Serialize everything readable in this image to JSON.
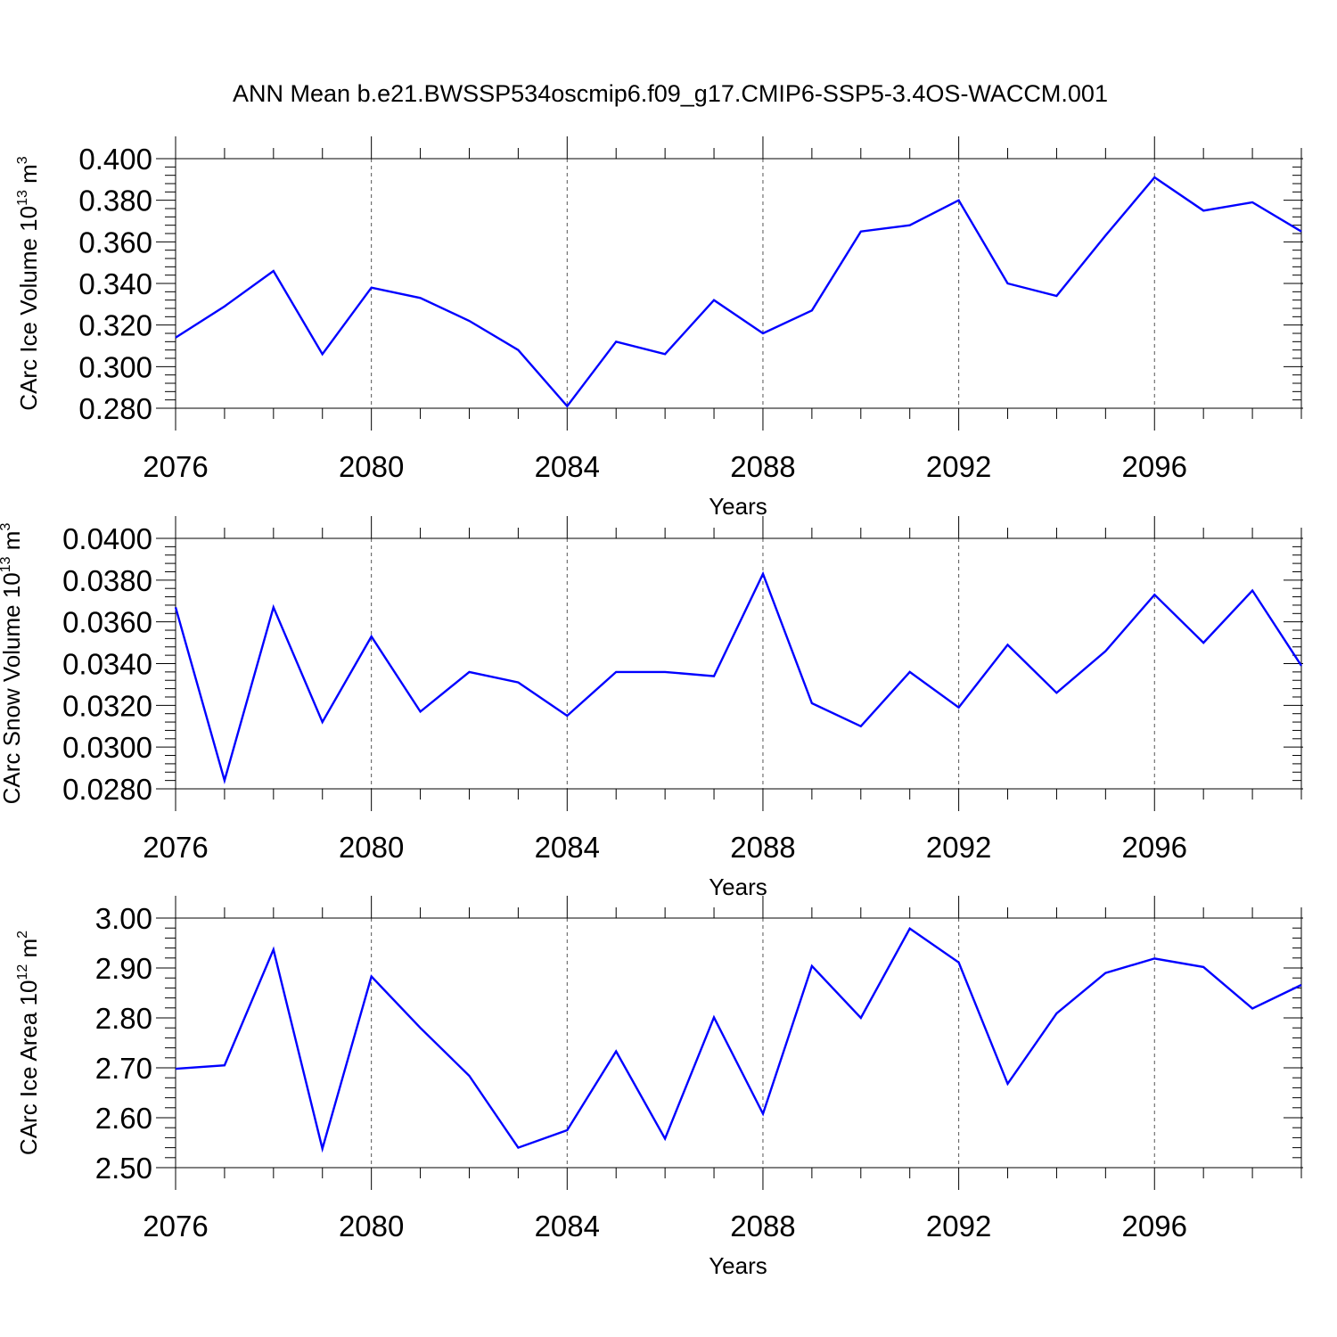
{
  "title": "ANN Mean b.e21.BWSSP534oscmip6.f09_g17.CMIP6-SSP5-3.4OS-WACCM.001",
  "colors": {
    "line": "#0000ff",
    "axis": "#000000",
    "grid": "#555555",
    "background": "#ffffff"
  },
  "chart_data": [
    {
      "type": "line",
      "title": "ANN Mean b.e21.BWSSP534oscmip6.f09_g17.CMIP6-SSP5-3.4OS-WACCM.001",
      "xlabel": "Years",
      "ylabel": {
        "prefix": "CArc Ice Volume 10",
        "exponent": "13",
        "middle": " m",
        "unit_exponent": "3"
      },
      "xlim": [
        2076,
        2099
      ],
      "ylim": [
        0.28,
        0.4
      ],
      "xticks": [
        "2076",
        "2080",
        "2084",
        "2088",
        "2092",
        "2096"
      ],
      "yticks": [
        "0.280",
        "0.300",
        "0.320",
        "0.340",
        "0.360",
        "0.380",
        "0.400"
      ],
      "grid": "vertical-dashed",
      "x": [
        2076,
        2077,
        2078,
        2079,
        2080,
        2081,
        2082,
        2083,
        2084,
        2085,
        2086,
        2087,
        2088,
        2089,
        2090,
        2091,
        2092,
        2093,
        2094,
        2095,
        2096,
        2097,
        2098,
        2099
      ],
      "values": [
        0.314,
        0.329,
        0.346,
        0.306,
        0.338,
        0.333,
        0.322,
        0.308,
        0.281,
        0.312,
        0.306,
        0.332,
        0.316,
        0.327,
        0.365,
        0.368,
        0.38,
        0.34,
        0.334,
        0.363,
        0.391,
        0.375,
        0.379,
        0.365
      ]
    },
    {
      "type": "line",
      "xlabel": "Years",
      "ylabel": {
        "prefix": "CArc Snow Volume 10",
        "exponent": "13",
        "middle": " m",
        "unit_exponent": "3"
      },
      "xlim": [
        2076,
        2099
      ],
      "ylim": [
        0.028,
        0.04
      ],
      "xticks": [
        "2076",
        "2080",
        "2084",
        "2088",
        "2092",
        "2096"
      ],
      "yticks": [
        "0.0280",
        "0.0300",
        "0.0320",
        "0.0340",
        "0.0360",
        "0.0380",
        "0.0400"
      ],
      "grid": "vertical-dashed",
      "x": [
        2076,
        2077,
        2078,
        2079,
        2080,
        2081,
        2082,
        2083,
        2084,
        2085,
        2086,
        2087,
        2088,
        2089,
        2090,
        2091,
        2092,
        2093,
        2094,
        2095,
        2096,
        2097,
        2098,
        2099
      ],
      "values": [
        0.0367,
        0.0284,
        0.0367,
        0.0312,
        0.0353,
        0.0317,
        0.0336,
        0.0331,
        0.0315,
        0.0336,
        0.0336,
        0.0334,
        0.0383,
        0.0321,
        0.031,
        0.0336,
        0.0319,
        0.0349,
        0.0326,
        0.0346,
        0.0373,
        0.035,
        0.0375,
        0.0339
      ]
    },
    {
      "type": "line",
      "xlabel": "Years",
      "ylabel": {
        "prefix": "CArc Ice Area 10",
        "exponent": "12",
        "middle": " m",
        "unit_exponent": "2"
      },
      "xlim": [
        2076,
        2099
      ],
      "ylim": [
        2.5,
        3.0
      ],
      "xticks": [
        "2076",
        "2080",
        "2084",
        "2088",
        "2092",
        "2096"
      ],
      "yticks": [
        "2.50",
        "2.60",
        "2.70",
        "2.80",
        "2.90",
        "3.00"
      ],
      "grid": "vertical-dashed",
      "x": [
        2076,
        2077,
        2078,
        2079,
        2080,
        2081,
        2082,
        2083,
        2084,
        2085,
        2086,
        2087,
        2088,
        2089,
        2090,
        2091,
        2092,
        2093,
        2094,
        2095,
        2096,
        2097,
        2098,
        2099
      ],
      "values": [
        2.698,
        2.705,
        2.937,
        2.538,
        2.883,
        2.78,
        2.684,
        2.54,
        2.575,
        2.733,
        2.558,
        2.801,
        2.608,
        2.904,
        2.8,
        2.979,
        2.911,
        2.668,
        2.809,
        2.89,
        2.919,
        2.902,
        2.819,
        2.866
      ]
    }
  ]
}
